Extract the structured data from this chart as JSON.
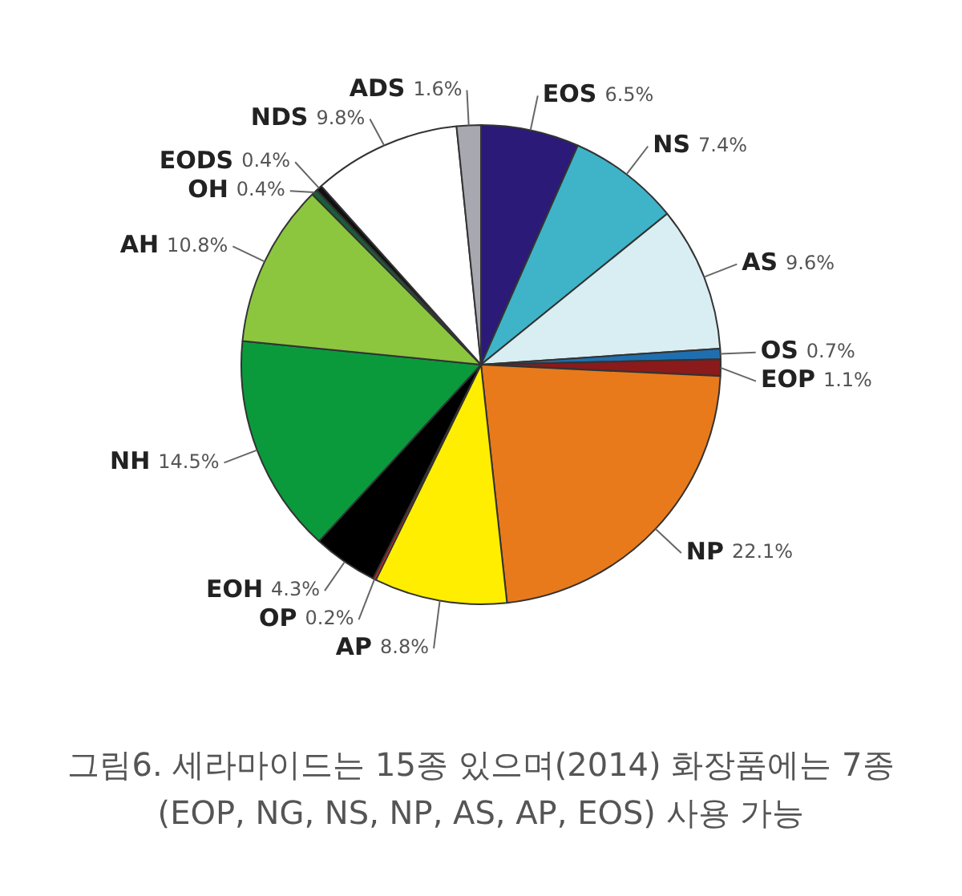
{
  "chart_data": {
    "type": "pie",
    "categories": [
      "EOS",
      "NS",
      "AS",
      "OS",
      "EOP",
      "NP",
      "AP",
      "OP",
      "EOH",
      "NH",
      "AH",
      "OH",
      "EODS",
      "NDS",
      "ADS"
    ],
    "values": [
      6.5,
      7.4,
      9.6,
      0.7,
      1.1,
      22.1,
      8.8,
      0.2,
      4.3,
      14.5,
      10.8,
      0.4,
      0.4,
      9.8,
      1.6
    ],
    "colors": [
      "#2b1a78",
      "#3fb3c8",
      "#d9eef2",
      "#1f6fb0",
      "#8b1a1a",
      "#e87a1c",
      "#ffee00",
      "#e02020",
      "#000000",
      "#0a9a3c",
      "#8cc63f",
      "#1a5e3a",
      "#111111",
      "#ffffff",
      "#a8a8b0"
    ],
    "value_labels": [
      "6.5%",
      "7.4%",
      "9.6%",
      "0.7%",
      "1.1%",
      "22.1%",
      "8.8%",
      "0.2%",
      "4.3%",
      "14.5%",
      "10.8%",
      "0.4%",
      "0.4%",
      "9.8%",
      "1.6%"
    ],
    "legend": false,
    "annotations": [
      "그림6. 세라마이드는 15종 있으며(2014) 화장품에는 7종(EOP, NG, NS, NP, AS, AP, EOS) 사용 가능"
    ]
  }
}
